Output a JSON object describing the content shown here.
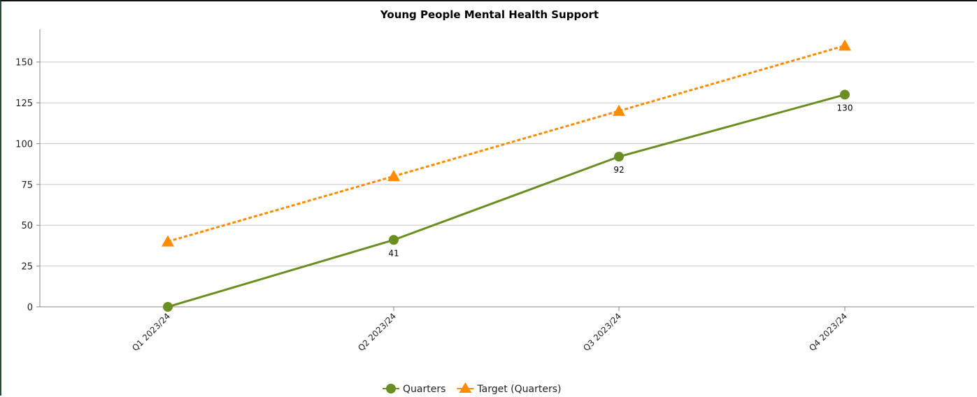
{
  "chart_data": {
    "type": "line",
    "title": "Young People Mental Health Support",
    "categories": [
      "Q1 2023/24",
      "Q2 2023/24",
      "Q3 2023/24",
      "Q4 2023/24"
    ],
    "series": [
      {
        "name": "Quarters",
        "values": [
          0,
          41,
          92,
          130
        ],
        "data_labels": [
          "",
          "41",
          "92",
          "130"
        ],
        "color": "#6b8e23",
        "marker": "circle",
        "line_style": "solid"
      },
      {
        "name": "Target (Quarters)",
        "values": [
          40,
          80,
          120,
          160
        ],
        "color": "#ff8c00",
        "marker": "triangle",
        "line_style": "dashed"
      }
    ],
    "yticks": [
      0,
      25,
      50,
      75,
      100,
      125,
      150
    ],
    "ylim": [
      0,
      170
    ],
    "grid": true,
    "legend": "bottom-center"
  }
}
